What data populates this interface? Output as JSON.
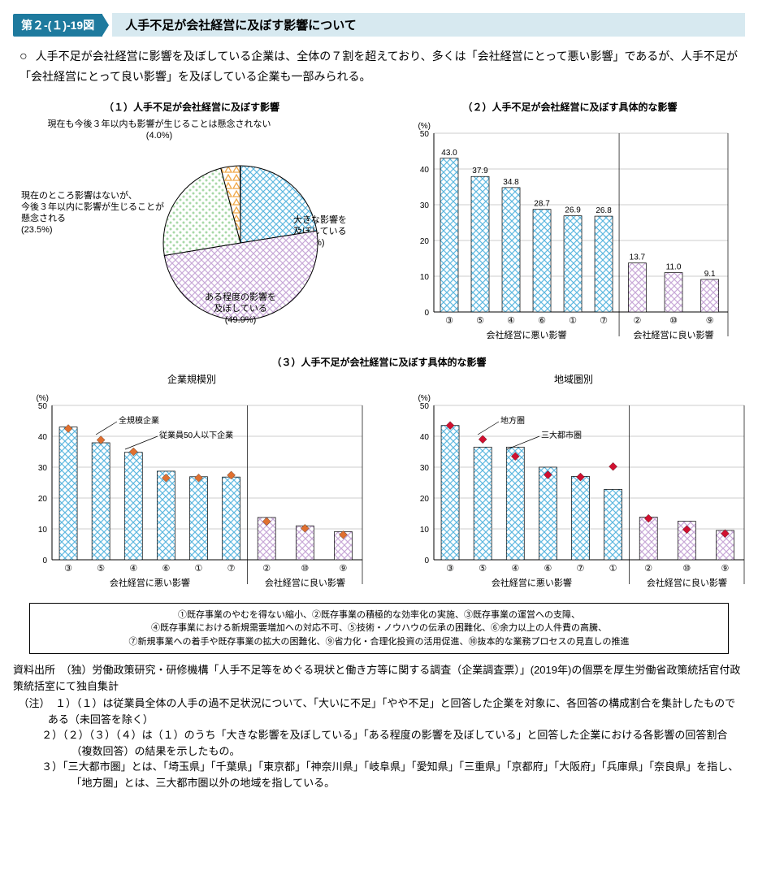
{
  "figure_tag": "第２-(１)-19図",
  "figure_title": "人手不足が会社経営に及ぼす影響について",
  "lead": "人手不足が会社経営に影響を及ぼしている企業は、全体の７割を超えており、多くは「会社経営にとって悪い影響」であるが、人手不足が「会社経営にとって良い影響」を及ぼしている企業も一部みられる。",
  "pie": {
    "title": "（１）人手不足が会社経営に及ぼす影響",
    "slices": [
      {
        "label": "大きな影響を\n及ぼしている",
        "value": 22.5,
        "pattern": "blue-cross"
      },
      {
        "label": "ある程度の影響を\n及ぼしている",
        "value": 49.9,
        "pattern": "purple-cross"
      },
      {
        "label": "現在のところ影響はないが、\n今後３年以内に影響が生じることが\n懸念される",
        "value": 23.5,
        "pattern": "green-dot"
      },
      {
        "label": "現在も今後３年以内も影響が生じることは懸念されない",
        "value": 4.0,
        "pattern": "orange-tri"
      }
    ]
  },
  "bar_top": {
    "title": "（２）人手不足が会社経営に及ぼす具体的な影響",
    "y_unit": "(%)",
    "ylim": [
      0,
      50
    ],
    "ytick_step": 10,
    "group_a_label": "会社経営に悪い影響",
    "group_b_label": "会社経営に良い影響",
    "group_a": [
      {
        "cat": "③",
        "v": 43.0
      },
      {
        "cat": "⑤",
        "v": 37.9
      },
      {
        "cat": "④",
        "v": 34.8
      },
      {
        "cat": "⑥",
        "v": 28.7
      },
      {
        "cat": "①",
        "v": 26.9
      },
      {
        "cat": "⑦",
        "v": 26.8
      }
    ],
    "group_b": [
      {
        "cat": "②",
        "v": 13.7
      },
      {
        "cat": "⑩",
        "v": 11.0
      },
      {
        "cat": "⑨",
        "v": 9.1
      }
    ],
    "bar_color_a": "blue-cross",
    "bar_color_b": "purple-cross"
  },
  "bar_bottom": {
    "title": "（３）人手不足が会社経営に及ぼす具体的な影響",
    "y_unit": "(%)",
    "ylim": [
      0,
      50
    ],
    "ytick_step": 10,
    "left": {
      "subtitle": "企業規模別",
      "legend": [
        "全規模企業",
        "従業員50人以下企業"
      ],
      "marker_color": "#e07030",
      "group_a_label": "会社経営に悪い影響",
      "group_b_label": "会社経営に良い影響",
      "group_a": [
        {
          "cat": "③",
          "bar": 43.0,
          "marker": 42.5
        },
        {
          "cat": "⑤",
          "bar": 37.9,
          "marker": 38.8
        },
        {
          "cat": "④",
          "bar": 34.8,
          "marker": 35.0
        },
        {
          "cat": "⑥",
          "bar": 28.7,
          "marker": 26.5
        },
        {
          "cat": "①",
          "bar": 26.9,
          "marker": 26.5
        },
        {
          "cat": "⑦",
          "bar": 26.8,
          "marker": 27.4
        }
      ],
      "group_b": [
        {
          "cat": "②",
          "bar": 13.7,
          "marker": 12.4
        },
        {
          "cat": "⑩",
          "bar": 11.0,
          "marker": 10.2
        },
        {
          "cat": "⑨",
          "bar": 9.1,
          "marker": 8.1
        }
      ]
    },
    "right": {
      "subtitle": "地域圏別",
      "legend": [
        "地方圏",
        "三大都市圏"
      ],
      "marker_color": "#d01030",
      "group_a_label": "会社経営に悪い影響",
      "group_b_label": "会社経営に良い影響",
      "group_a": [
        {
          "cat": "③",
          "bar": 43.5,
          "marker": 43.5
        },
        {
          "cat": "⑤",
          "bar": 36.5,
          "marker": 39.0
        },
        {
          "cat": "④",
          "bar": 36.5,
          "marker": 33.5
        },
        {
          "cat": "⑥",
          "bar": 30.0,
          "marker": 27.5
        },
        {
          "cat": "⑦",
          "bar": 27.0,
          "marker": 26.8
        },
        {
          "cat": "①",
          "bar": 22.8,
          "marker": 30.2
        }
      ],
      "group_b": [
        {
          "cat": "②",
          "bar": 13.8,
          "marker": 13.4
        },
        {
          "cat": "⑩",
          "bar": 12.5,
          "marker": 9.8
        },
        {
          "cat": "⑨",
          "bar": 9.5,
          "marker": 8.5
        }
      ]
    }
  },
  "legend_items": "①既存事業のやむを得ない縮小、②既存事業の積極的な効率化の実施、③既存事業の運営への支障、\n④既存事業における新規需要増加への対応不可、⑤技術・ノウハウの伝承の困難化、⑥余力以上の人件費の高騰、\n⑦新規事業への着手や既存事業の拡大の困難化、⑨省力化・合理化投資の活用促進、⑩抜本的な業務プロセスの見直しの推進",
  "source": "資料出所　（独）労働政策研究・研修機構「人手不足等をめぐる現状と働き方等に関する調査（企業調査票）」(2019年)の個票を厚生労働省政策統括官付政策統括室にて独自集計",
  "notes": [
    "（注）　１）（１）は従業員全体の人手の過不足状況について、「大いに不足」「やや不足」と回答した企業を対象に、各回答の構成割合を集計したものである（未回答を除く）",
    "２）（２）（３）（４）は（１）のうち「大きな影響を及ぼしている」「ある程度の影響を及ぼしている」と回答した企業における各影響の回答割合（複数回答）の結果を示したもの。",
    "３）「三大都市圏」とは、「埼玉県」「千葉県」「東京都」「神奈川県」「岐阜県」「愛知県」「三重県」「京都府」「大阪府」「兵庫県」「奈良県」を指し、「地方圏」とは、三大都市圏以外の地域を指している。"
  ],
  "colors": {
    "blue": "#5eb8e0",
    "purple": "#c8a8d8",
    "green": "#a8d8a8",
    "orange": "#f0a848",
    "axis": "#000000",
    "grid": "#999999"
  }
}
